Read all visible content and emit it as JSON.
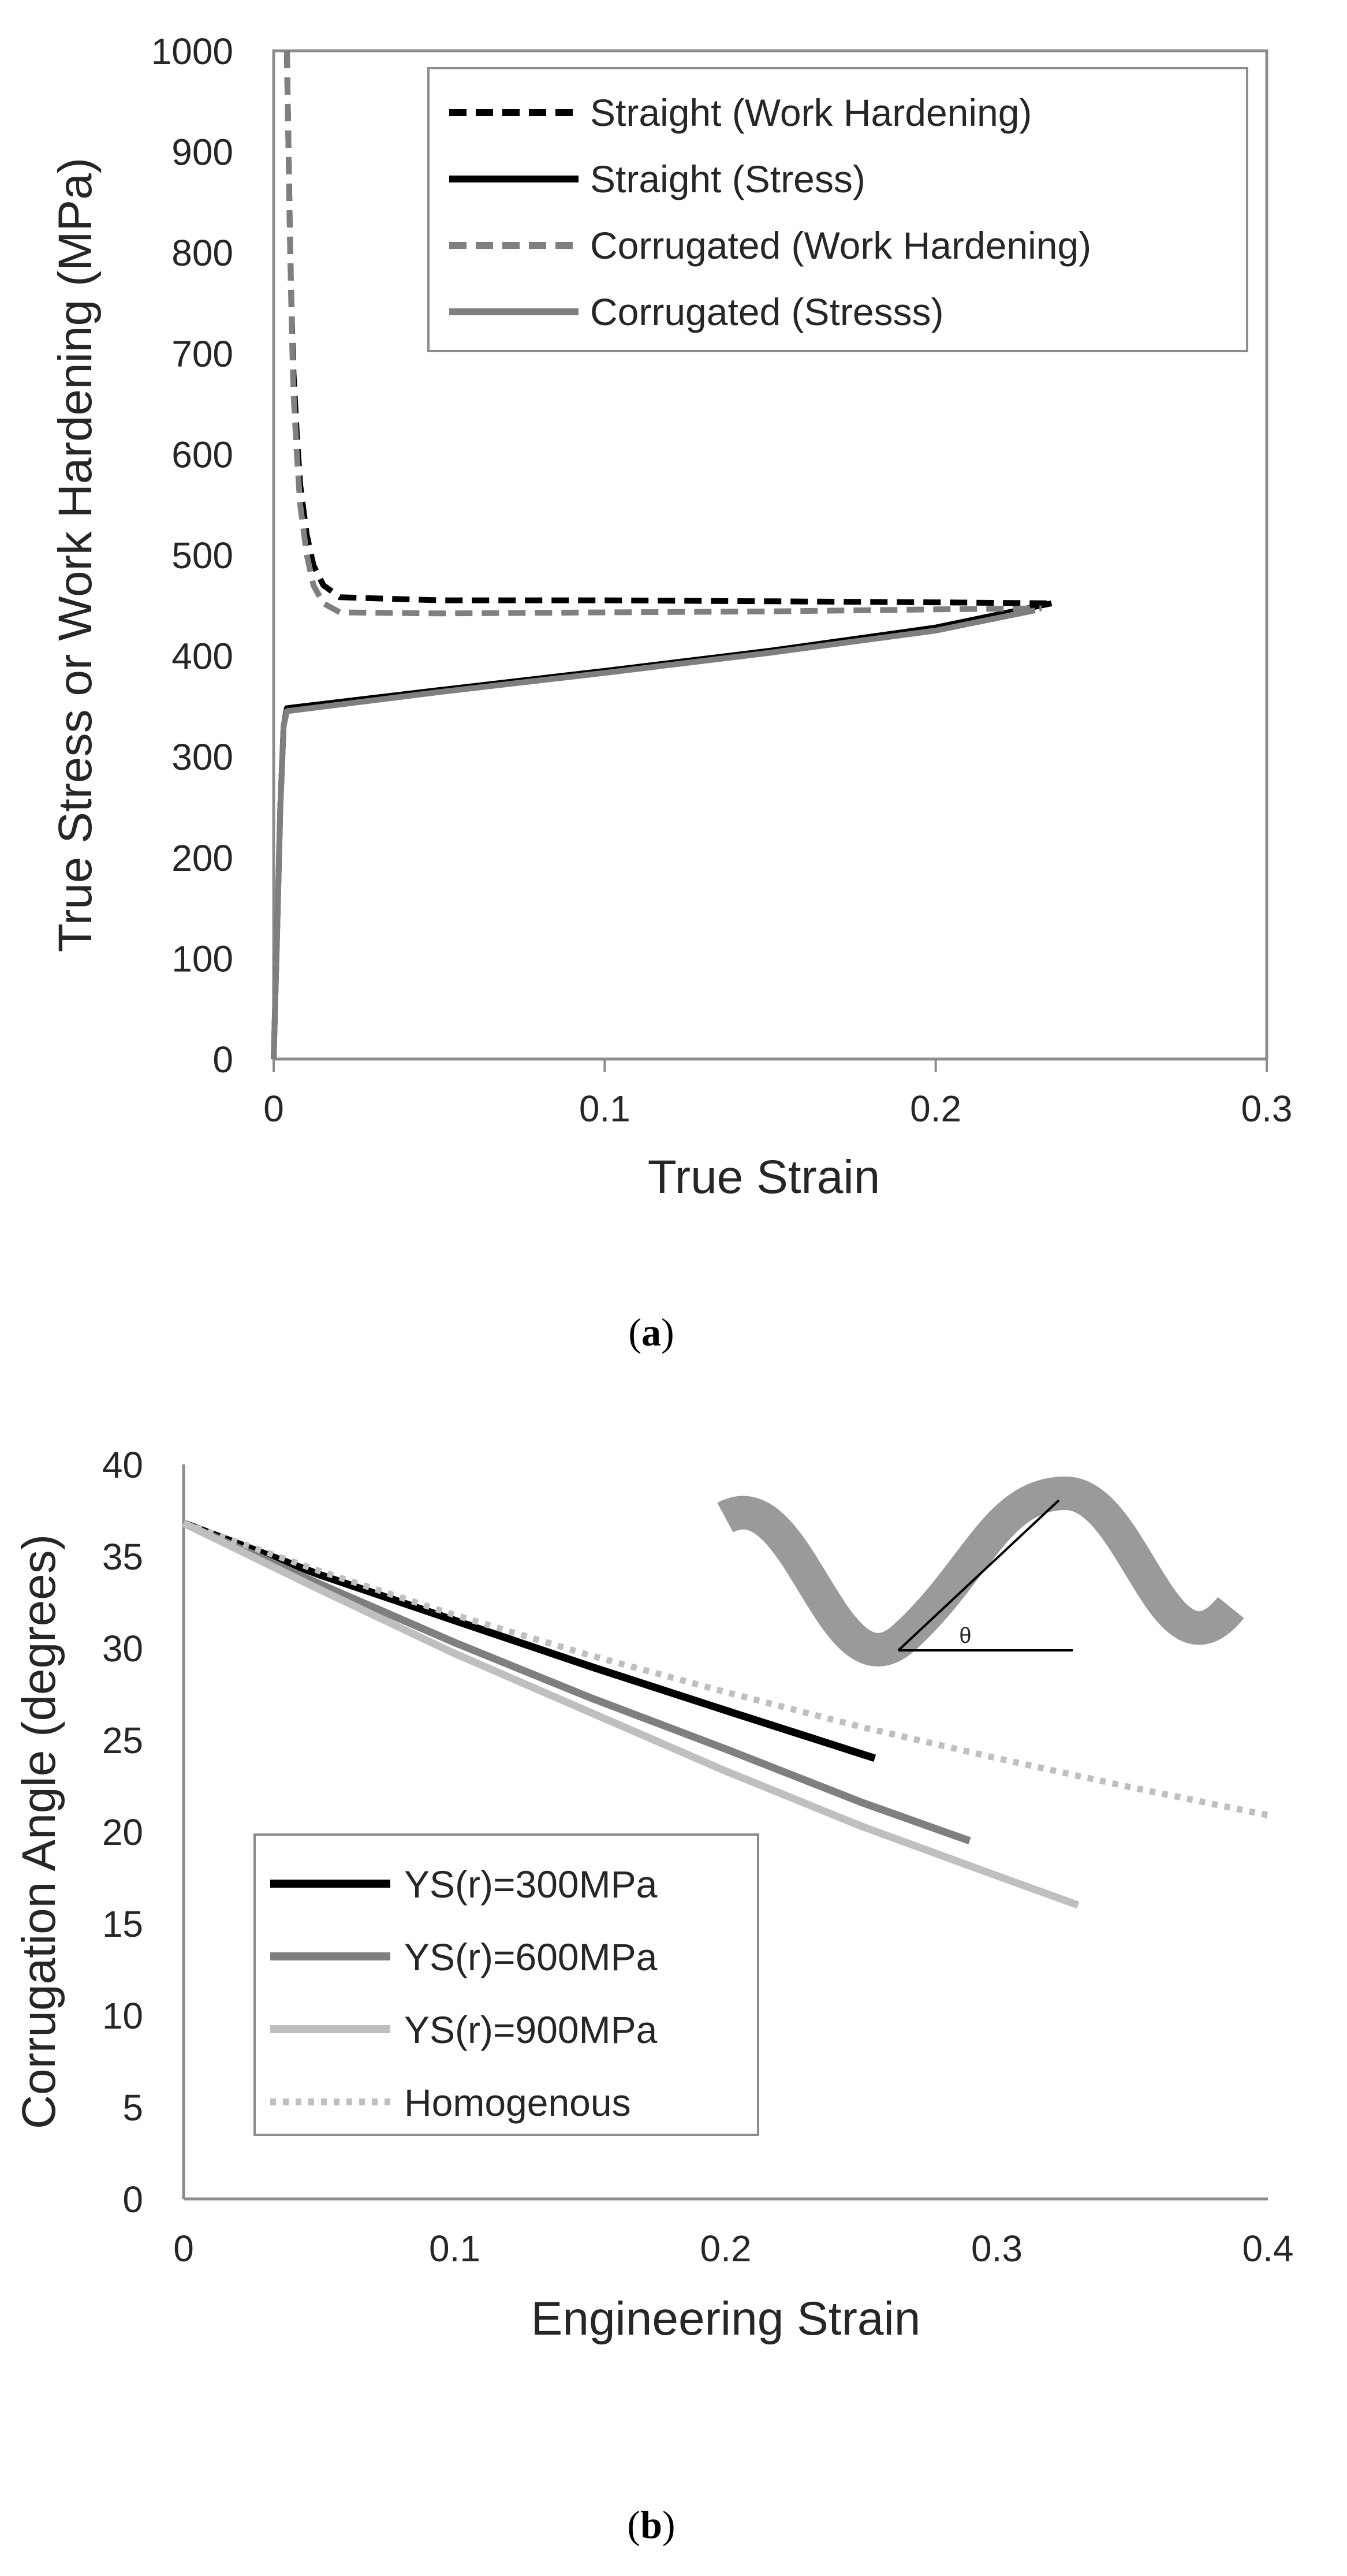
{
  "chart_data": [
    {
      "type": "line",
      "caption_open": "(",
      "caption_letter": "a",
      "caption_close": ")",
      "xlabel": "True Strain",
      "ylabel": "True Stress or Work Hardening (MPa)",
      "xlim": [
        0,
        0.3
      ],
      "ylim": [
        0,
        1000
      ],
      "xticks": [
        0,
        0.1,
        0.2,
        0.3
      ],
      "xtick_labels": [
        "0",
        "0.1",
        "0.2",
        "0.3"
      ],
      "yticks": [
        0,
        100,
        200,
        300,
        400,
        500,
        600,
        700,
        800,
        900,
        1000
      ],
      "ytick_labels": [
        "0",
        "100",
        "200",
        "300",
        "400",
        "500",
        "600",
        "700",
        "800",
        "900",
        "1000"
      ],
      "legend_position": "top-right",
      "series": [
        {
          "name": "Straight (Work Hardening)",
          "color": "#000000",
          "style": "dashed",
          "x": [
            0.004,
            0.0045,
            0.005,
            0.0055,
            0.006,
            0.007,
            0.008,
            0.01,
            0.012,
            0.015,
            0.02,
            0.05,
            0.1,
            0.15,
            0.2,
            0.235
          ],
          "y": [
            1000,
            900,
            800,
            730,
            680,
            620,
            570,
            520,
            490,
            470,
            458,
            455,
            455,
            454,
            453,
            452
          ]
        },
        {
          "name": "Straight (Stress)",
          "color": "#000000",
          "style": "solid",
          "x": [
            0,
            0.001,
            0.002,
            0.003,
            0.004,
            0.05,
            0.1,
            0.15,
            0.2,
            0.235
          ],
          "y": [
            0,
            120,
            250,
            330,
            348,
            366,
            385,
            405,
            428,
            452
          ]
        },
        {
          "name": "Corrugated (Work Hardening)",
          "color": "#7f7f7f",
          "style": "dashed",
          "x": [
            0.004,
            0.0045,
            0.005,
            0.0055,
            0.006,
            0.007,
            0.008,
            0.01,
            0.012,
            0.015,
            0.02,
            0.05,
            0.1,
            0.15,
            0.2,
            0.232
          ],
          "y": [
            1000,
            900,
            800,
            720,
            660,
            600,
            550,
            500,
            470,
            452,
            443,
            442,
            443,
            444,
            446,
            447
          ]
        },
        {
          "name": "Corrugated (Stresss)",
          "color": "#7f7f7f",
          "style": "solid",
          "x": [
            0,
            0.001,
            0.002,
            0.003,
            0.004,
            0.05,
            0.1,
            0.15,
            0.2,
            0.23
          ],
          "y": [
            0,
            120,
            250,
            330,
            345,
            364,
            383,
            403,
            425,
            445
          ]
        }
      ]
    },
    {
      "type": "line",
      "caption_open": "(",
      "caption_letter": "b",
      "caption_close": ")",
      "xlabel": "Engineering Strain",
      "ylabel": "Corrugation Angle (degrees)",
      "xlim": [
        0,
        0.4
      ],
      "ylim": [
        0,
        40
      ],
      "xticks": [
        0,
        0.1,
        0.2,
        0.3,
        0.4
      ],
      "xtick_labels": [
        "0",
        "0.1",
        "0.2",
        "0.3",
        "0.4"
      ],
      "yticks": [
        0,
        5,
        10,
        15,
        20,
        25,
        30,
        35,
        40
      ],
      "ytick_labels": [
        "0",
        "5",
        "10",
        "15",
        "20",
        "25",
        "30",
        "35",
        "40"
      ],
      "legend_position": "bottom-left",
      "inset_label": "θ",
      "series": [
        {
          "name": "YS(r)=300MPa",
          "color": "#000000",
          "style": "solid",
          "x": [
            0,
            0.05,
            0.1,
            0.15,
            0.2,
            0.255
          ],
          "y": [
            36.8,
            34.0,
            31.5,
            29.0,
            26.6,
            24.0
          ]
        },
        {
          "name": "YS(r)=600MPa",
          "color": "#7f7f7f",
          "style": "solid",
          "x": [
            0,
            0.05,
            0.1,
            0.15,
            0.2,
            0.25,
            0.29
          ],
          "y": [
            36.8,
            33.5,
            30.3,
            27.3,
            24.5,
            21.6,
            19.5
          ]
        },
        {
          "name": "YS(r)=900MPa",
          "color": "#bfbfbf",
          "style": "solid",
          "x": [
            0,
            0.05,
            0.1,
            0.15,
            0.2,
            0.25,
            0.3,
            0.33
          ],
          "y": [
            36.8,
            33.2,
            29.7,
            26.5,
            23.3,
            20.3,
            17.6,
            16.0
          ]
        },
        {
          "name": "Homogenous",
          "color": "#bfbfbf",
          "style": "dotted",
          "x": [
            0,
            0.05,
            0.1,
            0.15,
            0.2,
            0.25,
            0.3,
            0.35,
            0.4
          ],
          "y": [
            36.8,
            34.2,
            31.8,
            29.6,
            27.6,
            25.7,
            24.0,
            22.4,
            20.9
          ]
        }
      ]
    }
  ]
}
